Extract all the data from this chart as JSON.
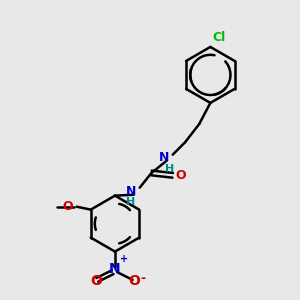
{
  "bg_color": "#e8e8e8",
  "bond_color": "#000000",
  "bond_width": 1.8,
  "colors": {
    "N": "#0000cc",
    "O": "#cc0000",
    "Cl": "#00bb00",
    "H": "#008888"
  },
  "labels": {
    "Cl": "Cl",
    "NH1": "H",
    "NH1_N": "N",
    "NH2": "H",
    "NH2_N": "N",
    "O_carbonyl": "O",
    "O_methoxy": "O",
    "NO2_N": "N",
    "NO2_O1": "O",
    "NO2_O2": "O"
  },
  "figsize": [
    3.0,
    3.0
  ],
  "dpi": 100
}
